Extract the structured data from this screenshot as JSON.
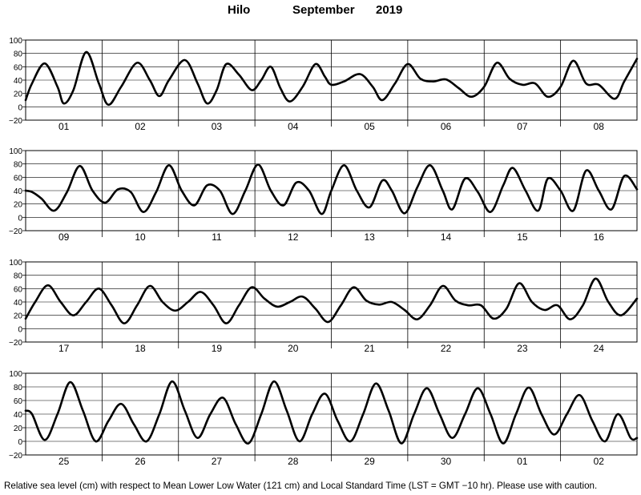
{
  "header": {
    "station": "Hilo",
    "month": "September",
    "year": "2019"
  },
  "footer": {
    "caption": "Relative sea level (cm) with respect to Mean Lower Low Water (121 cm) and Local Standard Time (LST = GMT −10 hr). Please use with caution."
  },
  "chart_data": {
    "type": "line",
    "ylim": [
      -20,
      100
    ],
    "y_ticks": [
      "100",
      "80",
      "60",
      "40",
      "20",
      "0",
      "−20"
    ],
    "grid": "vertical day separators and horizontal lines at each y tick",
    "line_color": "#000000",
    "panels": [
      {
        "days": [
          "01",
          "02",
          "03",
          "04",
          "05",
          "06",
          "07",
          "08"
        ],
        "x": [
          0,
          2,
          6,
          10,
          12,
          15,
          19,
          23,
          26,
          30,
          35,
          39,
          42,
          45,
          50,
          54,
          57,
          60,
          63,
          67,
          71,
          74,
          77,
          80,
          83,
          87,
          91,
          94,
          96,
          100,
          105,
          109,
          112,
          116,
          120,
          124,
          128,
          132,
          136,
          140,
          144,
          148,
          152,
          156,
          160,
          164,
          168,
          172,
          176,
          180,
          185,
          188,
          192
        ],
        "y": [
          10,
          35,
          65,
          30,
          5,
          25,
          82,
          35,
          3,
          30,
          66,
          40,
          16,
          40,
          70,
          35,
          5,
          25,
          64,
          48,
          25,
          40,
          60,
          28,
          8,
          30,
          64,
          45,
          33,
          38,
          49,
          30,
          10,
          35,
          64,
          42,
          38,
          41,
          28,
          15,
          30,
          66,
          42,
          33,
          35,
          15,
          30,
          69,
          35,
          33,
          12,
          38,
          72
        ]
      },
      {
        "days": [
          "09",
          "10",
          "11",
          "12",
          "13",
          "14",
          "15",
          "16"
        ],
        "x": [
          0,
          2,
          5,
          9,
          13,
          17,
          21,
          25,
          29,
          33,
          37,
          41,
          45,
          49,
          53,
          57,
          61,
          65,
          69,
          73,
          77,
          81,
          85,
          89,
          93,
          96,
          100,
          104,
          108,
          112,
          115,
          119,
          123,
          127,
          131,
          134,
          138,
          142,
          146,
          150,
          153,
          157,
          161,
          164,
          168,
          172,
          176,
          180,
          184,
          188,
          192
        ],
        "y": [
          40,
          38,
          28,
          10,
          38,
          77,
          40,
          22,
          42,
          38,
          8,
          38,
          78,
          40,
          18,
          48,
          40,
          5,
          40,
          79,
          40,
          18,
          52,
          40,
          5,
          40,
          78,
          40,
          15,
          55,
          40,
          6,
          45,
          78,
          40,
          12,
          58,
          38,
          8,
          48,
          74,
          40,
          10,
          58,
          40,
          10,
          70,
          40,
          12,
          62,
          42
        ]
      },
      {
        "days": [
          "17",
          "18",
          "19",
          "20",
          "21",
          "22",
          "23",
          "24"
        ],
        "x": [
          0,
          3,
          7,
          11,
          15,
          19,
          23,
          27,
          31,
          35,
          39,
          43,
          47,
          51,
          55,
          59,
          63,
          67,
          71,
          75,
          79,
          83,
          87,
          91,
          95,
          99,
          103,
          107,
          111,
          115,
          119,
          123,
          127,
          131,
          135,
          139,
          143,
          147,
          151,
          155,
          159,
          163,
          167,
          171,
          175,
          179,
          183,
          187,
          192
        ],
        "y": [
          15,
          40,
          65,
          40,
          20,
          40,
          60,
          35,
          8,
          35,
          64,
          40,
          27,
          40,
          55,
          35,
          8,
          35,
          62,
          45,
          33,
          40,
          48,
          30,
          10,
          35,
          62,
          42,
          36,
          40,
          28,
          14,
          35,
          64,
          42,
          35,
          35,
          15,
          30,
          68,
          40,
          28,
          35,
          14,
          35,
          75,
          40,
          20,
          45
        ]
      },
      {
        "days": [
          "25",
          "26",
          "27",
          "28",
          "29",
          "30",
          "01",
          "02"
        ],
        "x": [
          0,
          2,
          6,
          10,
          14,
          18,
          22,
          26,
          30,
          34,
          38,
          42,
          46,
          50,
          54,
          58,
          62,
          66,
          70,
          74,
          78,
          82,
          86,
          90,
          94,
          98,
          102,
          106,
          110,
          114,
          118,
          122,
          126,
          130,
          134,
          138,
          142,
          146,
          150,
          154,
          158,
          162,
          166,
          170,
          174,
          178,
          182,
          186,
          190,
          192
        ],
        "y": [
          45,
          40,
          2,
          40,
          87,
          45,
          0,
          30,
          55,
          25,
          0,
          40,
          88,
          45,
          5,
          40,
          64,
          25,
          -3,
          40,
          88,
          45,
          0,
          40,
          70,
          30,
          0,
          40,
          85,
          45,
          -3,
          40,
          78,
          40,
          5,
          40,
          78,
          40,
          -3,
          40,
          79,
          40,
          10,
          40,
          68,
          30,
          0,
          40,
          5,
          5
        ]
      }
    ]
  }
}
